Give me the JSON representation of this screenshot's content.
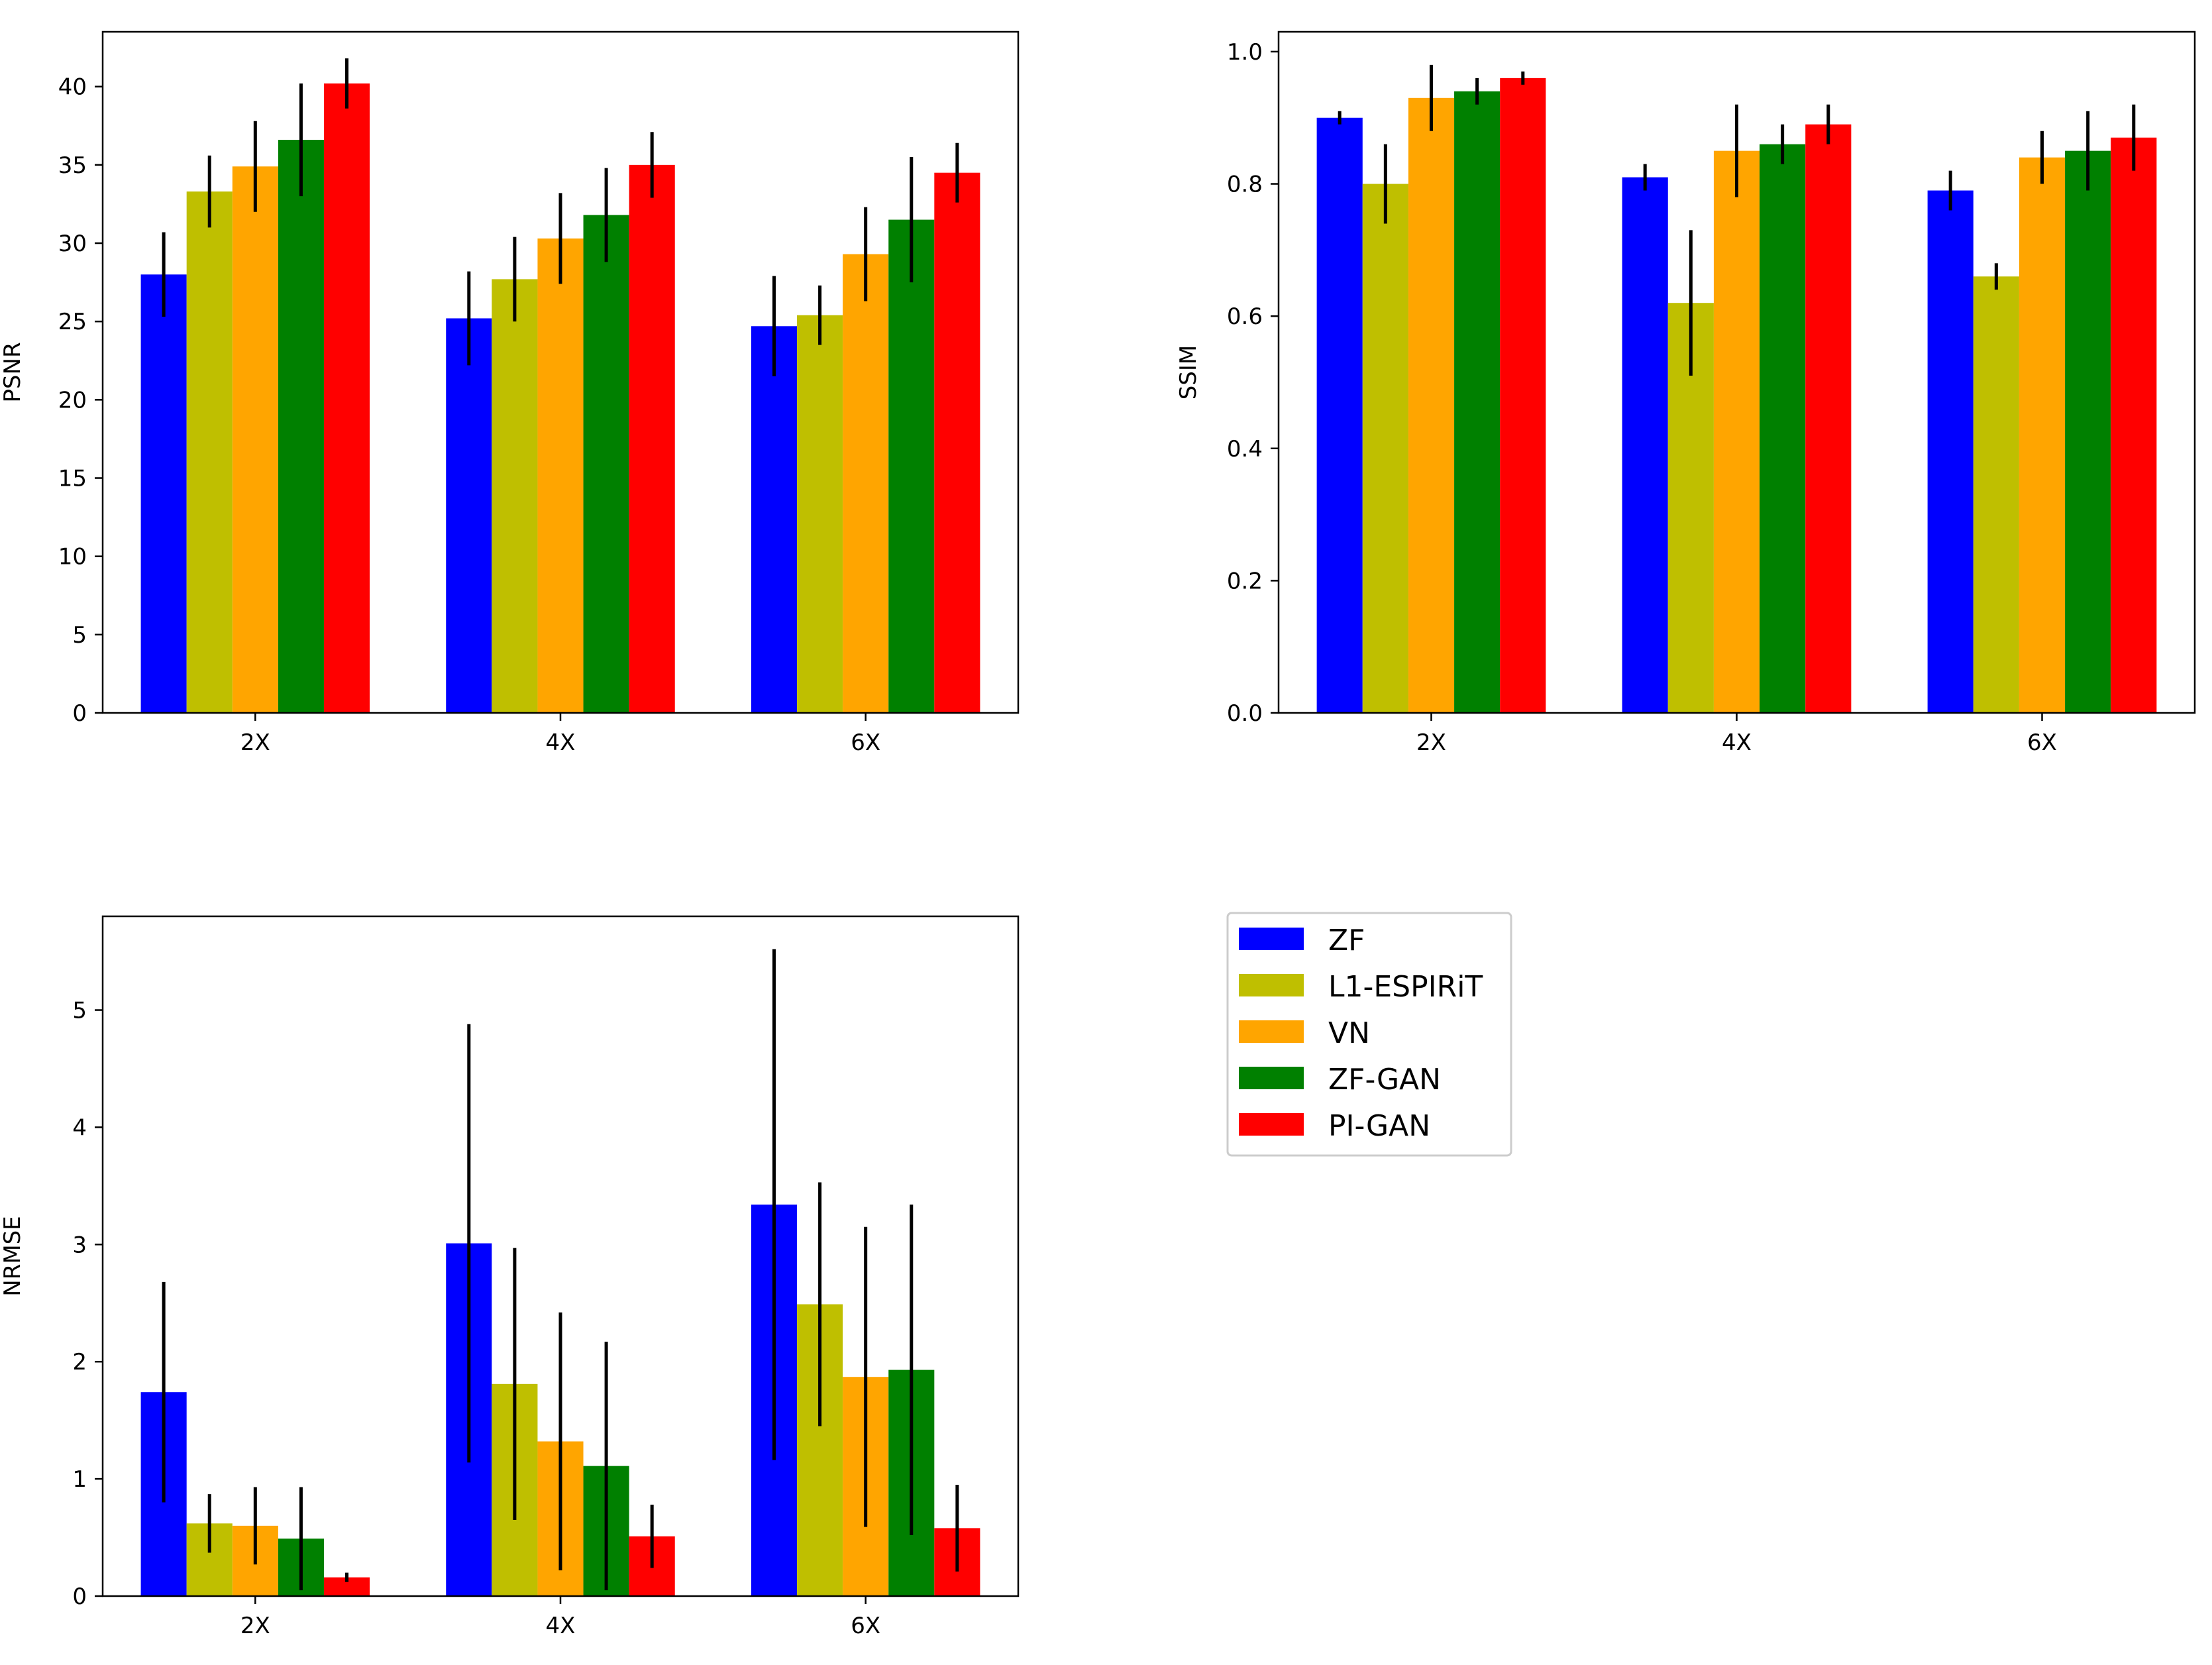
{
  "legend": {
    "entries": [
      {
        "name": "ZF",
        "color": "#0000ff"
      },
      {
        "name": "L1-ESPIRiT",
        "color": "#bfbf00"
      },
      {
        "name": "VN",
        "color": "#ffa500"
      },
      {
        "name": "ZF-GAN",
        "color": "#008000"
      },
      {
        "name": "PI-GAN",
        "color": "#ff0000"
      }
    ]
  },
  "chart_data": [
    {
      "type": "bar",
      "title": "",
      "xlabel": "",
      "ylabel": "PSNR",
      "categories": [
        "2X",
        "4X",
        "6X"
      ],
      "ylim": [
        0,
        43.5
      ],
      "yticks": [
        0,
        5,
        10,
        15,
        20,
        25,
        30,
        35,
        40
      ],
      "ytick_labels": [
        "0",
        "5",
        "10",
        "15",
        "20",
        "25",
        "30",
        "35",
        "40"
      ],
      "series": [
        {
          "name": "ZF",
          "values": [
            28.0,
            25.2,
            24.7
          ],
          "errors": [
            2.7,
            3.0,
            3.2
          ]
        },
        {
          "name": "L1-ESPIRiT",
          "values": [
            33.3,
            27.7,
            25.4
          ],
          "errors": [
            2.3,
            2.7,
            1.9
          ]
        },
        {
          "name": "VN",
          "values": [
            34.9,
            30.3,
            29.3
          ],
          "errors": [
            2.9,
            2.9,
            3.0
          ]
        },
        {
          "name": "ZF-GAN",
          "values": [
            36.6,
            31.8,
            31.5
          ],
          "errors": [
            3.6,
            3.0,
            4.0
          ]
        },
        {
          "name": "PI-GAN",
          "values": [
            40.2,
            35.0,
            34.5
          ],
          "errors": [
            1.6,
            2.1,
            1.9
          ]
        }
      ]
    },
    {
      "type": "bar",
      "title": "",
      "xlabel": "",
      "ylabel": "SSIM",
      "categories": [
        "2X",
        "4X",
        "6X"
      ],
      "ylim": [
        0,
        1.03
      ],
      "yticks": [
        0.0,
        0.2,
        0.4,
        0.6,
        0.8,
        1.0
      ],
      "ytick_labels": [
        "0.0",
        "0.2",
        "0.4",
        "0.6",
        "0.8",
        "1.0"
      ],
      "series": [
        {
          "name": "ZF",
          "values": [
            0.9,
            0.81,
            0.79
          ],
          "errors": [
            0.01,
            0.02,
            0.03
          ]
        },
        {
          "name": "L1-ESPIRiT",
          "values": [
            0.8,
            0.62,
            0.66
          ],
          "errors": [
            0.06,
            0.11,
            0.02
          ]
        },
        {
          "name": "VN",
          "values": [
            0.93,
            0.85,
            0.84
          ],
          "errors": [
            0.05,
            0.07,
            0.04
          ]
        },
        {
          "name": "ZF-GAN",
          "values": [
            0.94,
            0.86,
            0.85
          ],
          "errors": [
            0.02,
            0.03,
            0.06
          ]
        },
        {
          "name": "PI-GAN",
          "values": [
            0.96,
            0.89,
            0.87
          ],
          "errors": [
            0.01,
            0.03,
            0.05
          ]
        }
      ]
    },
    {
      "type": "bar",
      "title": "",
      "xlabel": "",
      "ylabel": "NRMSE",
      "categories": [
        "2X",
        "4X",
        "6X"
      ],
      "ylim": [
        0,
        5.8
      ],
      "yticks": [
        0,
        1,
        2,
        3,
        4,
        5
      ],
      "ytick_labels": [
        "0",
        "1",
        "2",
        "3",
        "4",
        "5"
      ],
      "series": [
        {
          "name": "ZF",
          "values": [
            1.74,
            3.01,
            3.34
          ],
          "errors": [
            0.94,
            1.87,
            2.18
          ]
        },
        {
          "name": "L1-ESPIRiT",
          "values": [
            0.62,
            1.81,
            2.49
          ],
          "errors": [
            0.25,
            1.16,
            1.04
          ]
        },
        {
          "name": "VN",
          "values": [
            0.6,
            1.32,
            1.87
          ],
          "errors": [
            0.33,
            1.1,
            1.28
          ]
        },
        {
          "name": "ZF-GAN",
          "values": [
            0.49,
            1.11,
            1.93
          ],
          "errors": [
            0.44,
            1.06,
            1.41
          ]
        },
        {
          "name": "PI-GAN",
          "values": [
            0.16,
            0.51,
            0.58
          ],
          "errors": [
            0.04,
            0.27,
            0.37
          ]
        }
      ]
    }
  ]
}
